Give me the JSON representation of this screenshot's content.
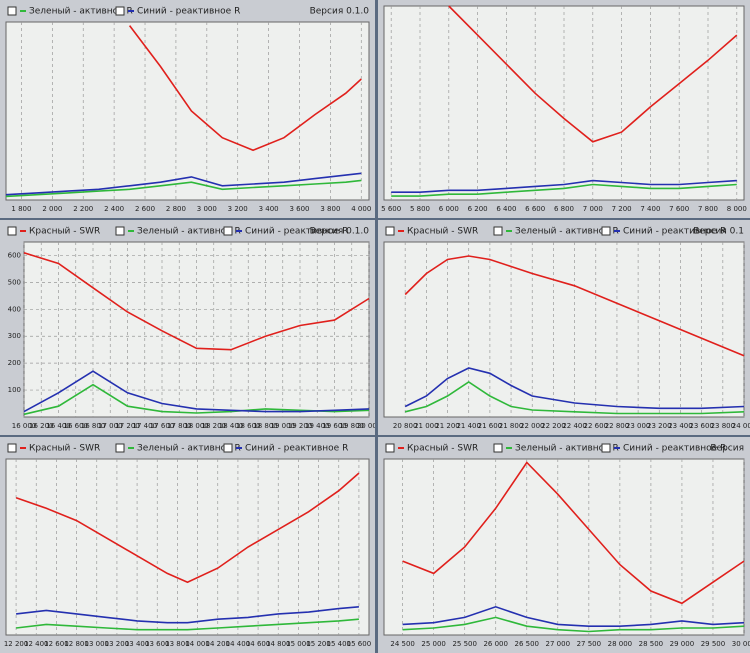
{
  "chart_data": [
    {
      "type": "line",
      "version": "Версия 0.1.0",
      "x": [
        1700,
        1900,
        2100,
        2300,
        2500,
        2700,
        2900,
        3100,
        3300,
        3500,
        3700,
        3900,
        4000
      ],
      "xlim": [
        1700,
        4050
      ],
      "xticks": [
        {
          "value": 1800,
          "label": "1 800"
        },
        {
          "value": 2000,
          "label": "2 000"
        },
        {
          "value": 2200,
          "label": "2 200"
        },
        {
          "value": 2400,
          "label": "2 400"
        },
        {
          "value": 2600,
          "label": "2 600"
        },
        {
          "value": 2800,
          "label": "2 800"
        },
        {
          "value": 3000,
          "label": "3 000"
        },
        {
          "value": 3200,
          "label": "3 200"
        },
        {
          "value": 3400,
          "label": "3 400"
        },
        {
          "value": 3600,
          "label": "3 600"
        },
        {
          "value": 3800,
          "label": "3 800"
        },
        {
          "value": 4000,
          "label": "4 000"
        }
      ],
      "ylim": [
        0,
        100
      ],
      "grid": true,
      "series": [
        {
          "color": "#e0201c",
          "values": [
            null,
            null,
            null,
            null,
            98,
            75,
            50,
            35,
            28,
            35,
            48,
            60,
            68
          ]
        },
        {
          "name": "Зеленый - активное R",
          "color": "#2fb83a",
          "values": [
            2,
            3,
            4,
            5,
            6,
            8,
            10,
            6,
            7,
            8,
            9,
            10,
            11
          ]
        },
        {
          "name": "Синий - реактивное R",
          "color": "#2430b0",
          "values": [
            3,
            4,
            5,
            6,
            8,
            10,
            13,
            8,
            9,
            10,
            12,
            14,
            15
          ]
        }
      ]
    },
    {
      "type": "line",
      "x": [
        5600,
        5800,
        6000,
        6200,
        6400,
        6600,
        6800,
        7000,
        7200,
        7400,
        7600,
        7800,
        8000
      ],
      "xlim": [
        5550,
        8050
      ],
      "xticks": [
        {
          "value": 5600,
          "label": "5 600"
        },
        {
          "value": 5800,
          "label": "5 800"
        },
        {
          "value": 6000,
          "label": "6 000"
        },
        {
          "value": 6200,
          "label": "6 200"
        },
        {
          "value": 6400,
          "label": "6 400"
        },
        {
          "value": 6600,
          "label": "6 600"
        },
        {
          "value": 6800,
          "label": "6 800"
        },
        {
          "value": 7000,
          "label": "7 000"
        },
        {
          "value": 7200,
          "label": "7 200"
        },
        {
          "value": 7400,
          "label": "7 400"
        },
        {
          "value": 7600,
          "label": "7 600"
        },
        {
          "value": 7800,
          "label": "7 800"
        },
        {
          "value": 8000,
          "label": "8 000"
        }
      ],
      "ylim": [
        0,
        100
      ],
      "grid": true,
      "series": [
        {
          "color": "#e0201c",
          "values": [
            null,
            null,
            100,
            85,
            70,
            55,
            42,
            30,
            35,
            48,
            60,
            72,
            85
          ]
        },
        {
          "color": "#2fb83a",
          "values": [
            2,
            2,
            3,
            3,
            4,
            5,
            6,
            8,
            7,
            6,
            6,
            7,
            8
          ]
        },
        {
          "color": "#2430b0",
          "values": [
            4,
            4,
            5,
            5,
            6,
            7,
            8,
            10,
            9,
            8,
            8,
            9,
            10
          ]
        }
      ]
    },
    {
      "type": "line",
      "version": "Версия 0.1.0",
      "x": [
        16000,
        16400,
        16800,
        17200,
        17600,
        18000,
        18400,
        18800,
        19200,
        19600,
        20000
      ],
      "xlim": [
        16000,
        20000
      ],
      "xticks": [
        {
          "value": 16000,
          "label": "16 000"
        },
        {
          "value": 16200,
          "label": "16 200"
        },
        {
          "value": 16400,
          "label": "16 400"
        },
        {
          "value": 16600,
          "label": "16 600"
        },
        {
          "value": 16800,
          "label": "16 800"
        },
        {
          "value": 17000,
          "label": "17 000"
        },
        {
          "value": 17200,
          "label": "17 200"
        },
        {
          "value": 17400,
          "label": "17 400"
        },
        {
          "value": 17600,
          "label": "17 600"
        },
        {
          "value": 17800,
          "label": "17 800"
        },
        {
          "value": 18000,
          "label": "18 000"
        },
        {
          "value": 18200,
          "label": "18 200"
        },
        {
          "value": 18400,
          "label": "18 400"
        },
        {
          "value": 18600,
          "label": "18 600"
        },
        {
          "value": 18800,
          "label": "18 800"
        },
        {
          "value": 19000,
          "label": "19 000"
        },
        {
          "value": 19200,
          "label": "19 200"
        },
        {
          "value": 19400,
          "label": "19 400"
        },
        {
          "value": 19600,
          "label": "19 600"
        },
        {
          "value": 19800,
          "label": "19 800"
        },
        {
          "value": 20000,
          "label": "20 000"
        }
      ],
      "ylim": [
        0,
        650
      ],
      "yticks": [
        100,
        200,
        300,
        400,
        500,
        600
      ],
      "grid": true,
      "series": [
        {
          "name": "Красный - SWR",
          "color": "#e0201c",
          "values": [
            610,
            570,
            480,
            390,
            320,
            255,
            250,
            300,
            340,
            360,
            440
          ]
        },
        {
          "name": "Зеленый - активное R",
          "color": "#2fb83a",
          "values": [
            10,
            40,
            120,
            40,
            20,
            15,
            20,
            30,
            25,
            20,
            25
          ]
        },
        {
          "name": "Синий - реактивное R",
          "color": "#2430b0",
          "values": [
            20,
            90,
            170,
            90,
            50,
            30,
            25,
            20,
            20,
            25,
            30
          ]
        }
      ]
    },
    {
      "type": "line",
      "version": "Версия 0.1",
      "x": [
        20800,
        21000,
        21200,
        21400,
        21600,
        21800,
        22000,
        22400,
        22800,
        23200,
        23600,
        24000
      ],
      "xlim": [
        20600,
        24000
      ],
      "xticks": [
        {
          "value": 20800,
          "label": "20 800"
        },
        {
          "value": 21000,
          "label": "21 000"
        },
        {
          "value": 21200,
          "label": "21 200"
        },
        {
          "value": 21400,
          "label": "21 400"
        },
        {
          "value": 21600,
          "label": "21 600"
        },
        {
          "value": 21800,
          "label": "21 800"
        },
        {
          "value": 22000,
          "label": "22 000"
        },
        {
          "value": 22200,
          "label": "22 200"
        },
        {
          "value": 22400,
          "label": "22 400"
        },
        {
          "value": 22600,
          "label": "22 600"
        },
        {
          "value": 22800,
          "label": "22 800"
        },
        {
          "value": 23000,
          "label": "23 000"
        },
        {
          "value": 23200,
          "label": "23 200"
        },
        {
          "value": 23400,
          "label": "23 400"
        },
        {
          "value": 23600,
          "label": "23 600"
        },
        {
          "value": 23800,
          "label": "23 800"
        },
        {
          "value": 24000,
          "label": "24 000"
        }
      ],
      "ylim": [
        0,
        100
      ],
      "grid": true,
      "series": [
        {
          "name": "Красный - SWR",
          "color": "#e0201c",
          "values": [
            70,
            82,
            90,
            92,
            90,
            86,
            82,
            75,
            65,
            55,
            45,
            35
          ]
        },
        {
          "name": "Зеленый - активное R",
          "color": "#2fb83a",
          "values": [
            3,
            6,
            12,
            20,
            12,
            6,
            4,
            3,
            2,
            2,
            2,
            3
          ]
        },
        {
          "name": "Синий - реактивное R",
          "color": "#2430b0",
          "values": [
            6,
            12,
            22,
            28,
            25,
            18,
            12,
            8,
            6,
            5,
            5,
            6
          ]
        }
      ]
    },
    {
      "type": "line",
      "x": [
        12200,
        12500,
        12800,
        13100,
        13400,
        13700,
        13900,
        14200,
        14500,
        14800,
        15100,
        15400,
        15600
      ],
      "xlim": [
        12100,
        15700
      ],
      "xticks": [
        {
          "value": 12200,
          "label": "12 200"
        },
        {
          "value": 12400,
          "label": "12 400"
        },
        {
          "value": 12600,
          "label": "12 600"
        },
        {
          "value": 12800,
          "label": "12 800"
        },
        {
          "value": 13000,
          "label": "13 000"
        },
        {
          "value": 13200,
          "label": "13 200"
        },
        {
          "value": 13400,
          "label": "13 400"
        },
        {
          "value": 13600,
          "label": "13 600"
        },
        {
          "value": 13800,
          "label": "13 800"
        },
        {
          "value": 14000,
          "label": "14 000"
        },
        {
          "value": 14200,
          "label": "14 200"
        },
        {
          "value": 14400,
          "label": "14 400"
        },
        {
          "value": 14600,
          "label": "14 600"
        },
        {
          "value": 14800,
          "label": "14 800"
        },
        {
          "value": 15000,
          "label": "15 000"
        },
        {
          "value": 15200,
          "label": "15 200"
        },
        {
          "value": 15400,
          "label": "15 400"
        },
        {
          "value": 15600,
          "label": "15 600"
        }
      ],
      "ylim": [
        0,
        100
      ],
      "grid": true,
      "series": [
        {
          "name": "Красный - SWR",
          "color": "#e0201c",
          "values": [
            78,
            72,
            65,
            55,
            45,
            35,
            30,
            38,
            50,
            60,
            70,
            82,
            92
          ]
        },
        {
          "name": "Зеленый - активное R",
          "color": "#2fb83a",
          "values": [
            4,
            6,
            5,
            4,
            3,
            3,
            3,
            4,
            5,
            6,
            7,
            8,
            9
          ]
        },
        {
          "name": "Синий - реактивное R",
          "color": "#2430b0",
          "values": [
            12,
            14,
            12,
            10,
            8,
            7,
            7,
            9,
            10,
            12,
            13,
            15,
            16
          ]
        }
      ]
    },
    {
      "type": "line",
      "version": "Версия",
      "x": [
        24500,
        25000,
        25500,
        26000,
        26500,
        27000,
        27500,
        28000,
        28500,
        29000,
        29500,
        30000
      ],
      "xlim": [
        24200,
        30000
      ],
      "xticks": [
        {
          "value": 24500,
          "label": "24 500"
        },
        {
          "value": 25000,
          "label": "25 000"
        },
        {
          "value": 25500,
          "label": "25 500"
        },
        {
          "value": 26000,
          "label": "26 000"
        },
        {
          "value": 26500,
          "label": "26 500"
        },
        {
          "value": 27000,
          "label": "27 000"
        },
        {
          "value": 27500,
          "label": "27 500"
        },
        {
          "value": 28000,
          "label": "28 000"
        },
        {
          "value": 28500,
          "label": "28 500"
        },
        {
          "value": 29000,
          "label": "29 000"
        },
        {
          "value": 29500,
          "label": "29 500"
        },
        {
          "value": 30000,
          "label": "30 000"
        }
      ],
      "ylim": [
        0,
        100
      ],
      "grid": true,
      "series": [
        {
          "name": "Красный - SWR",
          "color": "#e0201c",
          "values": [
            42,
            35,
            50,
            72,
            98,
            80,
            60,
            40,
            25,
            18,
            30,
            42
          ]
        },
        {
          "name": "Зеленый - активное R",
          "color": "#2fb83a",
          "values": [
            3,
            4,
            6,
            10,
            5,
            3,
            2,
            3,
            3,
            4,
            4,
            5
          ]
        },
        {
          "name": "Синий - реактивное R",
          "color": "#2430b0",
          "values": [
            6,
            7,
            10,
            16,
            10,
            6,
            5,
            5,
            6,
            8,
            6,
            7
          ]
        }
      ]
    }
  ]
}
